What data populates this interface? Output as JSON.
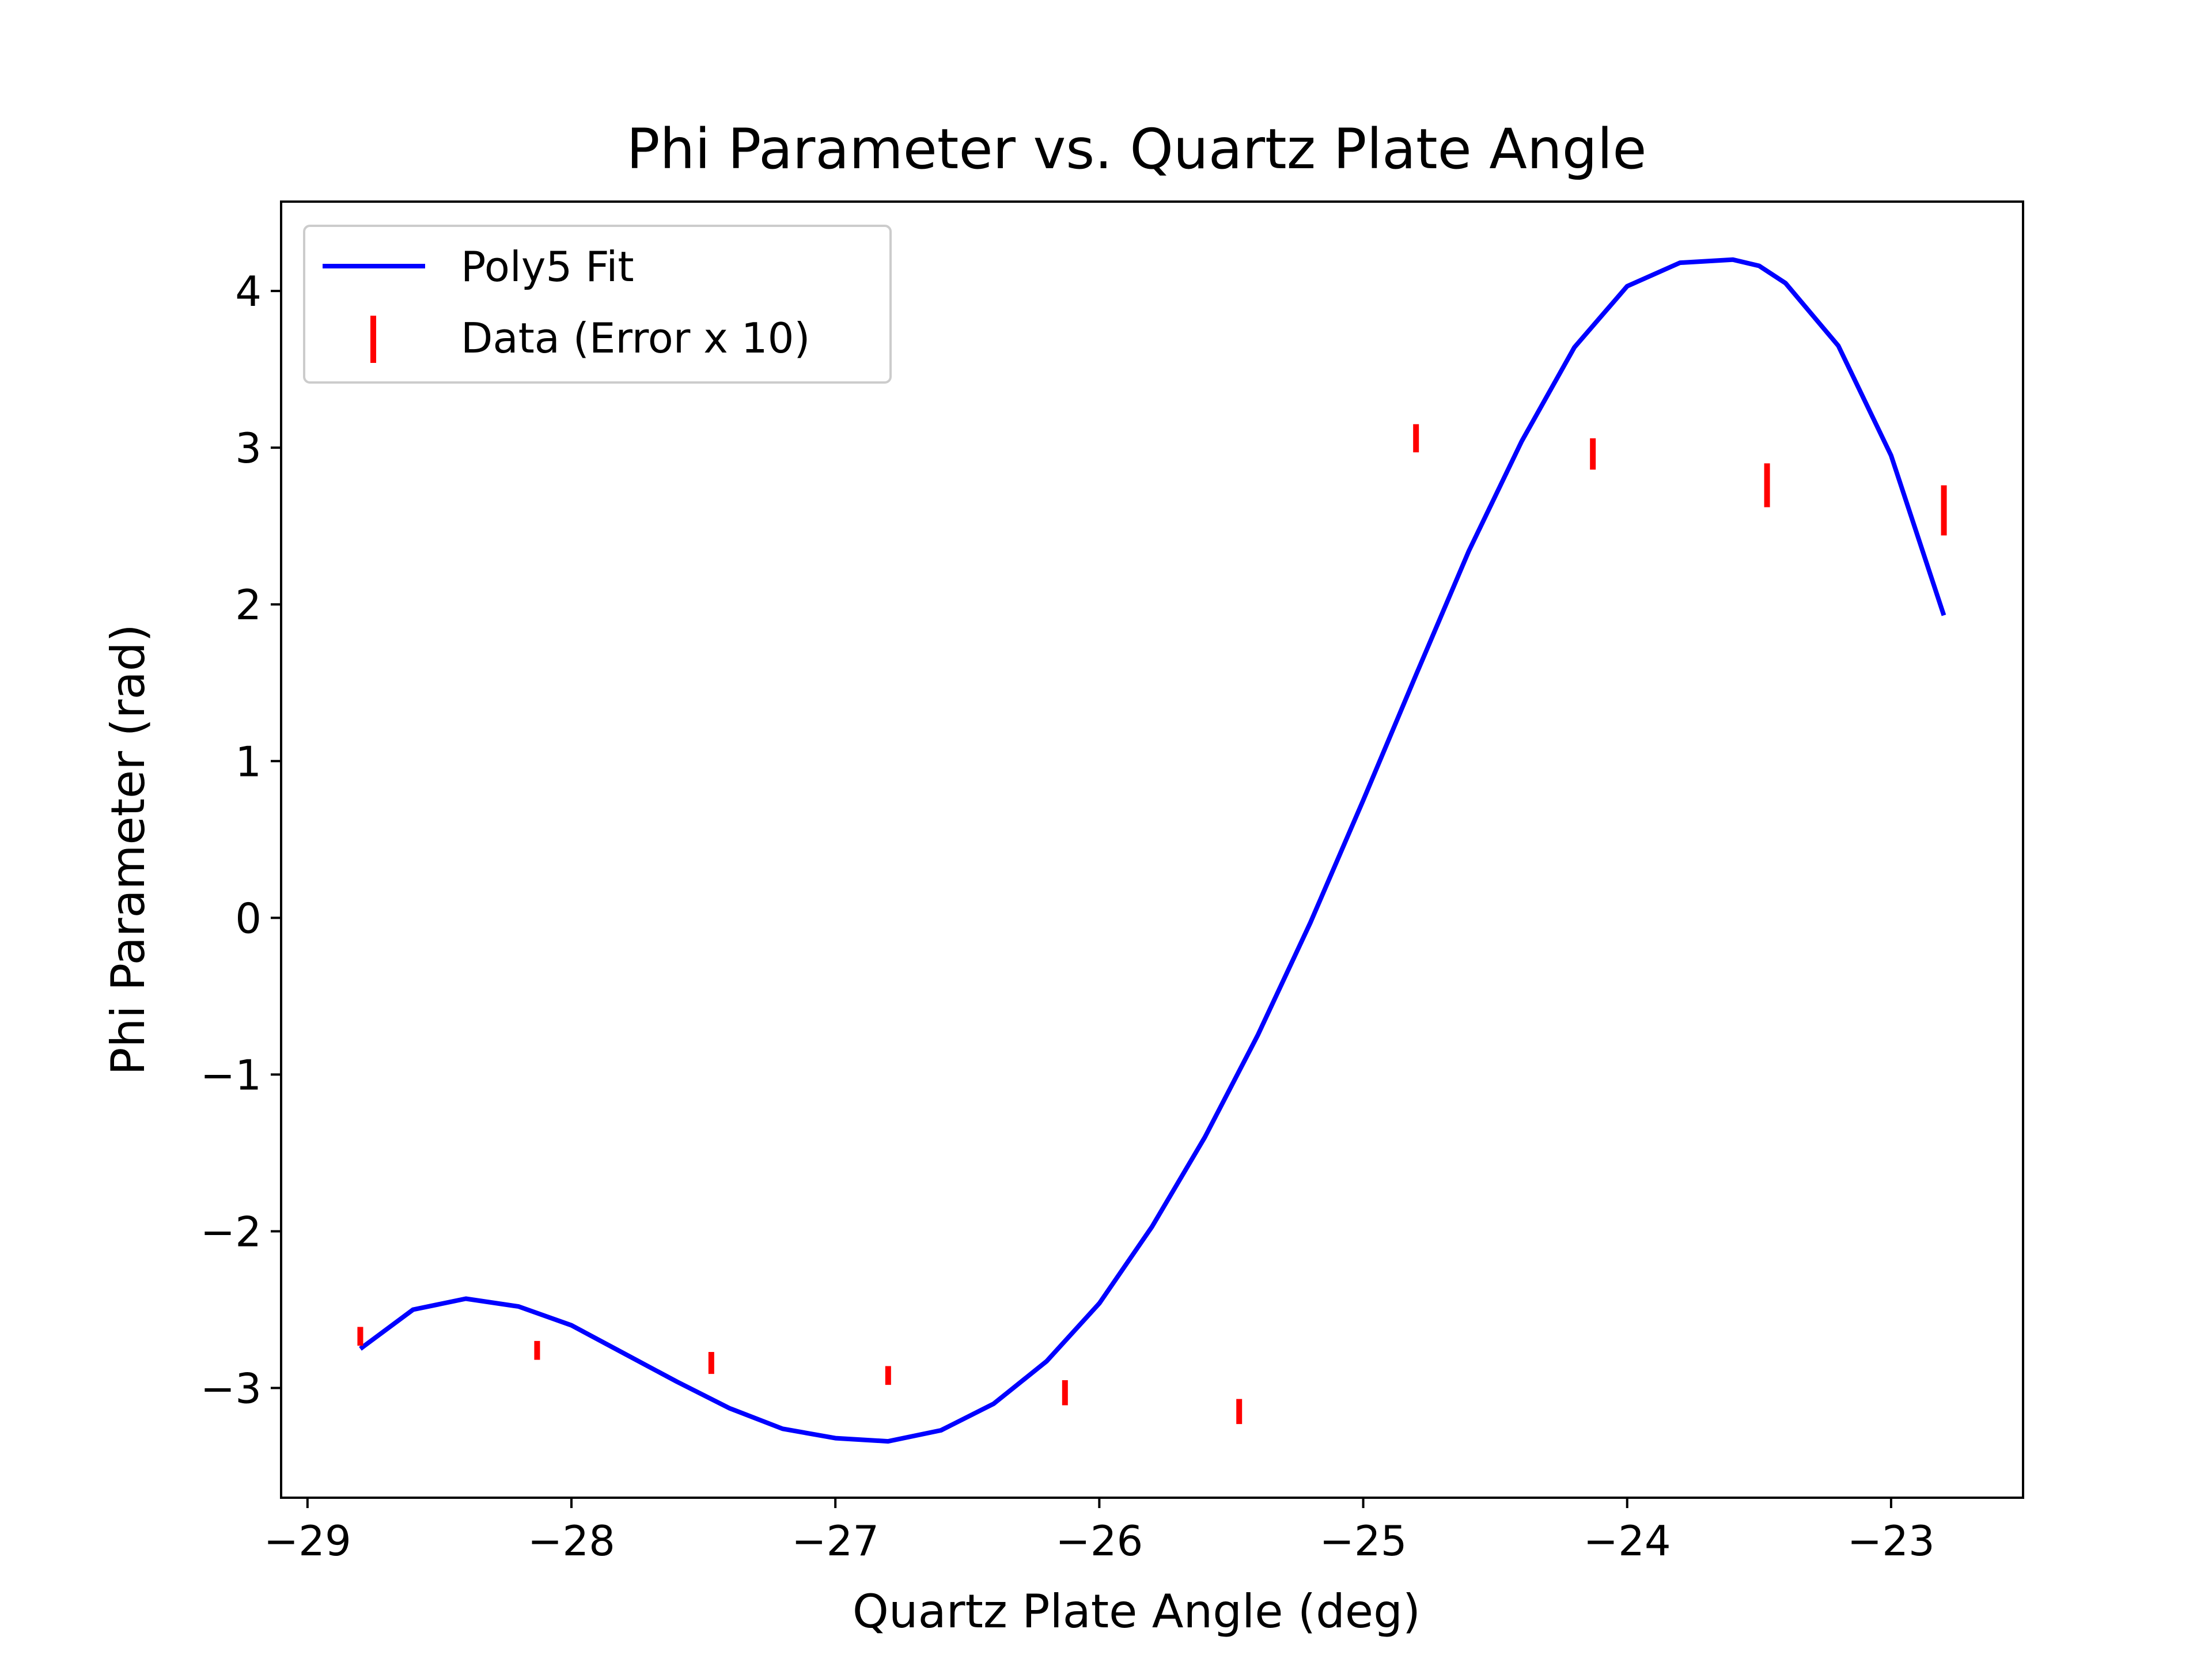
{
  "chart_data": {
    "type": "scatter",
    "title": "Phi Parameter vs. Quartz Plate Angle",
    "xlabel": "Quartz Plate Angle (deg)",
    "ylabel": "Phi Parameter (rad)",
    "xlim": [
      -29.1,
      -22.5
    ],
    "ylim": [
      -3.7,
      4.57
    ],
    "xticks": [
      -29,
      -28,
      -27,
      -26,
      -25,
      -24,
      -23
    ],
    "xtick_labels": [
      "−29",
      "−28",
      "−27",
      "−26",
      "−25",
      "−24",
      "−23"
    ],
    "yticks": [
      -3,
      -2,
      -1,
      0,
      1,
      2,
      3,
      4
    ],
    "ytick_labels": [
      "−3",
      "−2",
      "−1",
      "0",
      "1",
      "2",
      "3",
      "4"
    ],
    "grid": false,
    "legend_position": "upper-left",
    "series": [
      {
        "name": "Poly5 Fit",
        "kind": "line",
        "color": "#0000ff",
        "x": [
          -28.8,
          -28.6,
          -28.4,
          -28.2,
          -28.0,
          -27.8,
          -27.6,
          -27.4,
          -27.2,
          -27.0,
          -26.8,
          -26.6,
          -26.4,
          -26.2,
          -26.0,
          -25.8,
          -25.6,
          -25.4,
          -25.2,
          -25.0,
          -24.8,
          -24.6,
          -24.4,
          -24.2,
          -24.0,
          -23.8,
          -23.6,
          -23.5,
          -23.4,
          -23.2,
          -23.0,
          -22.8
        ],
        "y": [
          -2.75,
          -2.5,
          -2.43,
          -2.48,
          -2.6,
          -2.78,
          -2.96,
          -3.13,
          -3.26,
          -3.32,
          -3.34,
          -3.27,
          -3.1,
          -2.83,
          -2.46,
          -1.97,
          -1.4,
          -0.75,
          -0.03,
          0.75,
          1.55,
          2.34,
          3.04,
          3.64,
          4.03,
          4.18,
          4.2,
          4.16,
          4.05,
          3.65,
          2.95,
          1.93
        ]
      },
      {
        "name": "Data (Error x 10)",
        "kind": "errorbar",
        "color": "#ff0000",
        "x": [
          -28.8,
          -28.13,
          -27.47,
          -26.8,
          -26.13,
          -25.47,
          -24.8,
          -24.13,
          -23.47,
          -22.8
        ],
        "y": [
          -2.67,
          -2.76,
          -2.84,
          -2.92,
          -3.03,
          -3.15,
          3.06,
          2.96,
          2.76,
          2.6
        ],
        "err": [
          0.06,
          0.06,
          0.07,
          0.06,
          0.08,
          0.08,
          0.09,
          0.1,
          0.14,
          0.16
        ]
      }
    ]
  }
}
